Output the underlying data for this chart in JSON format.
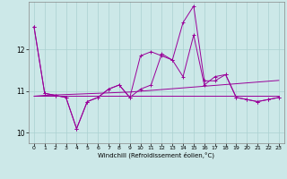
{
  "x": [
    0,
    1,
    2,
    3,
    4,
    5,
    6,
    7,
    8,
    9,
    10,
    11,
    12,
    13,
    14,
    15,
    16,
    17,
    18,
    19,
    20,
    21,
    22,
    23
  ],
  "series1": [
    12.55,
    10.95,
    10.9,
    10.85,
    10.1,
    10.75,
    10.85,
    11.05,
    11.15,
    10.85,
    11.05,
    11.15,
    11.9,
    11.75,
    11.35,
    12.35,
    11.15,
    11.35,
    11.4,
    10.85,
    10.8,
    10.75,
    10.8,
    10.85
  ],
  "series2": [
    12.55,
    10.95,
    10.9,
    10.85,
    10.1,
    10.75,
    10.85,
    11.05,
    11.15,
    10.85,
    11.85,
    11.95,
    11.85,
    11.75,
    12.65,
    13.05,
    11.25,
    11.25,
    11.4,
    10.85,
    10.8,
    10.75,
    10.8,
    10.85
  ],
  "trend1": [
    10.88,
    10.9,
    10.91,
    10.92,
    10.93,
    10.94,
    10.95,
    10.96,
    10.97,
    10.98,
    11.0,
    11.02,
    11.04,
    11.06,
    11.08,
    11.1,
    11.12,
    11.14,
    11.16,
    11.18,
    11.2,
    11.22,
    11.24,
    11.26
  ],
  "trend2": [
    10.88,
    10.88,
    10.88,
    10.88,
    10.88,
    10.88,
    10.88,
    10.88,
    10.88,
    10.88,
    10.88,
    10.88,
    10.88,
    10.88,
    10.88,
    10.88,
    10.88,
    10.88,
    10.88,
    10.88,
    10.88,
    10.88,
    10.88,
    10.88
  ],
  "ylim": [
    9.75,
    13.15
  ],
  "yticks": [
    10,
    11,
    12
  ],
  "xlabel": "Windchill (Refroidissement éolien,°C)",
  "line_color": "#990099",
  "bg_color": "#cce8e8",
  "grid_color": "#aad0d0",
  "spine_color": "#888888"
}
